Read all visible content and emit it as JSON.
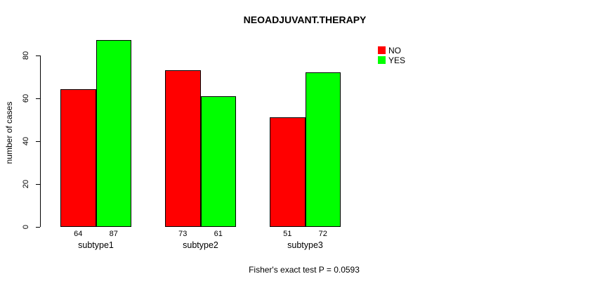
{
  "chart_data": {
    "type": "bar",
    "title": "NEOADJUVANT.THERAPY",
    "ylabel": "number of cases",
    "xlabel": "",
    "categories": [
      "subtype1",
      "subtype2",
      "subtype3"
    ],
    "series": [
      {
        "name": "NO",
        "color": "#FF0000",
        "values": [
          64,
          73,
          51
        ]
      },
      {
        "name": "YES",
        "color": "#00FF00",
        "values": [
          87,
          61,
          72
        ]
      }
    ],
    "ylim": [
      0,
      80
    ],
    "yticks": [
      0,
      20,
      40,
      60,
      80
    ],
    "grid": false,
    "bar_outline_color": "#000000",
    "show_value_labels": true,
    "legend_position": "top-right",
    "annotation": "Fisher's exact test P = 0.0593"
  }
}
